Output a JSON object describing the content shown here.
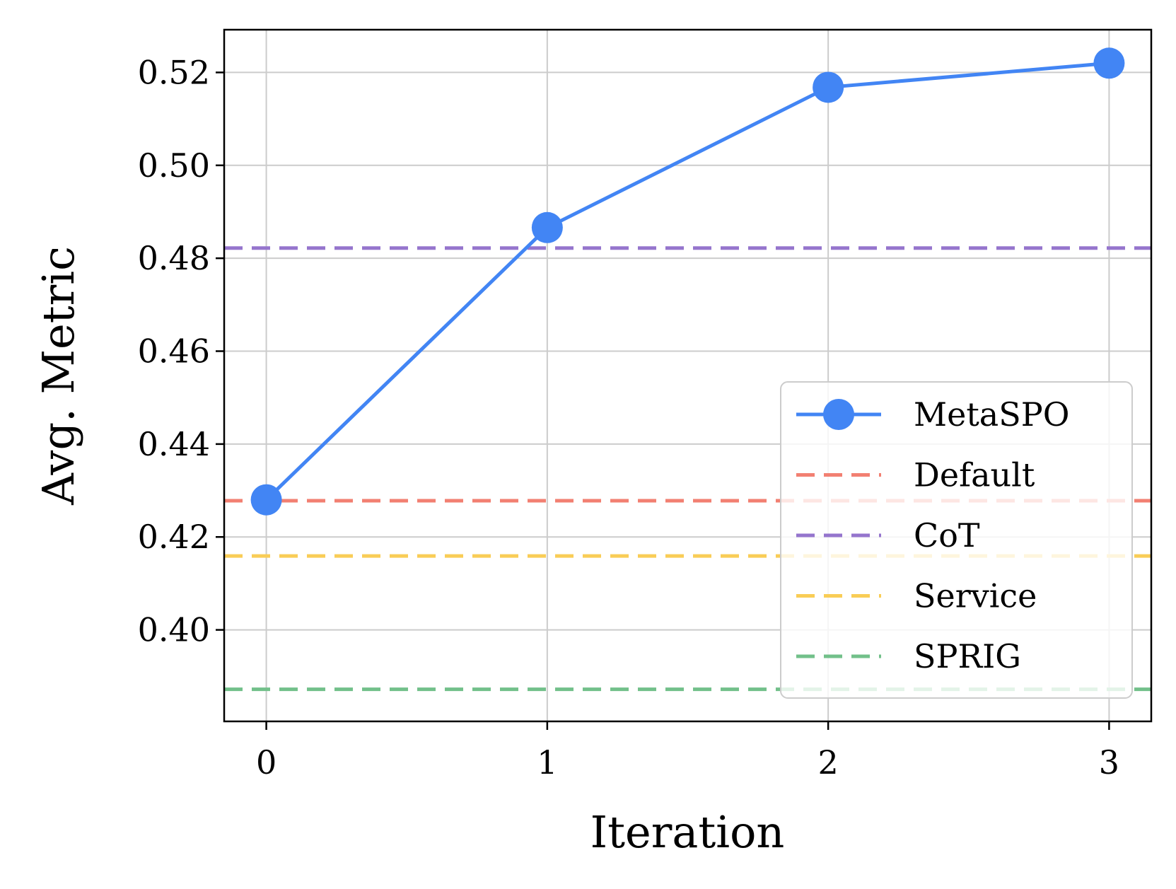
{
  "chart_data": {
    "type": "line",
    "title": "",
    "xlabel": "Iteration",
    "ylabel": "Avg. Metric",
    "x": [
      0,
      1,
      2,
      3
    ],
    "xticks": [
      "0",
      "1",
      "2",
      "3"
    ],
    "xlim": [
      -0.15,
      3.15
    ],
    "yticks": [
      "0.40",
      "0.42",
      "0.44",
      "0.46",
      "0.48",
      "0.50",
      "0.52"
    ],
    "ylim": [
      0.3803,
      0.5292
    ],
    "grid": true,
    "legend_position": "lower-right",
    "series": [
      {
        "name": "MetaSPO",
        "style": "solid-marker",
        "color": "#4285F4",
        "values": [
          0.428,
          0.4866,
          0.5168,
          0.522
        ]
      }
    ],
    "baselines": [
      {
        "name": "Default",
        "value": 0.4278,
        "color": "#F28072"
      },
      {
        "name": "CoT",
        "value": 0.4822,
        "color": "#9575CD"
      },
      {
        "name": "Service",
        "value": 0.4159,
        "color": "#F9CD56"
      },
      {
        "name": "SPRIG",
        "value": 0.3872,
        "color": "#72C08A"
      }
    ]
  }
}
